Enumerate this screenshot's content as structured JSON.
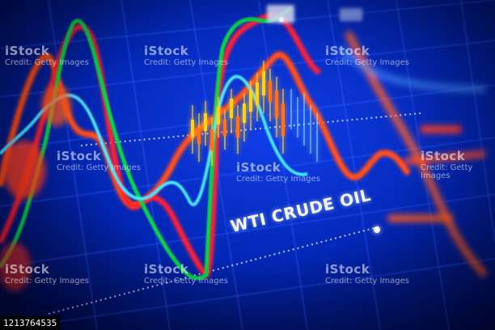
{
  "photo": {
    "description_text": "WTI CRUDE OIL",
    "image_id": "1213764535",
    "colors": {
      "background": "#041a6e",
      "grid": "#3f6dff",
      "orange_line": "#ff5a1f",
      "red_line": "#ff2a2a",
      "green_line": "#28c85a",
      "cyan_line": "#5ee0ff",
      "candle_up": "#ffd23c",
      "candle_down": "#ff7a2a"
    }
  },
  "watermarks": [
    {
      "brand": "iStock",
      "sub": "Credit: Getty Images"
    }
  ]
}
